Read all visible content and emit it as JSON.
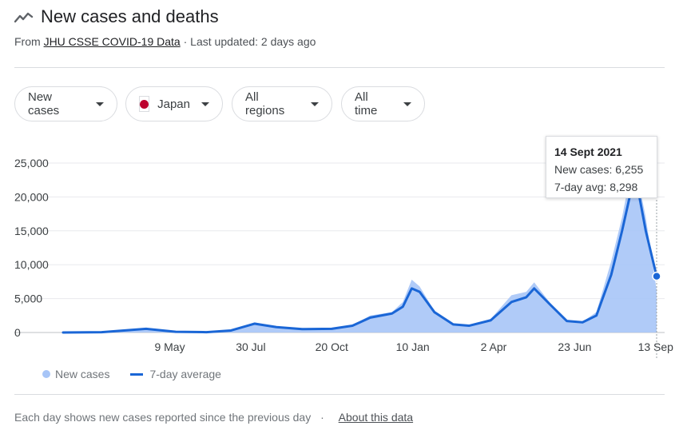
{
  "header": {
    "title": "New cases and deaths",
    "source_prefix": "From",
    "source_link": "JHU CSSE COVID-19 Data",
    "updated": "· Last updated: 2 days ago"
  },
  "filters": {
    "metric": "New cases",
    "country": "Japan",
    "region": "All regions",
    "time": "All time"
  },
  "tooltip": {
    "date": "14 Sept 2021",
    "new_cases": "New cases: 6,255",
    "avg": "7-day avg: 8,298"
  },
  "legend": {
    "bars": "New cases",
    "line": "7-day average"
  },
  "footer": {
    "note": "Each day shows new cases reported since the previous day",
    "sep": "·",
    "link": "About this data"
  },
  "colors": {
    "line": "#1a66d6",
    "bars": "#a7c5f7",
    "grid": "#e8eaed"
  },
  "chart_data": {
    "type": "area",
    "y_ticks": [
      0,
      5000,
      10000,
      15000,
      20000,
      25000
    ],
    "y_tick_labels": [
      "0",
      "5,000",
      "10,000",
      "15,000",
      "20,000",
      "25,000"
    ],
    "ylim": [
      0,
      25000
    ],
    "x_range": [
      "2020-01-22",
      "2021-09-14"
    ],
    "x_ticks": [
      {
        "date": "2020-05-09",
        "label": "9 May"
      },
      {
        "date": "2020-07-30",
        "label": "30 Jul"
      },
      {
        "date": "2020-10-20",
        "label": "20 Oct"
      },
      {
        "date": "2021-01-10",
        "label": "10 Jan"
      },
      {
        "date": "2021-04-02",
        "label": "2 Apr"
      },
      {
        "date": "2021-06-23",
        "label": "23 Jun"
      },
      {
        "date": "2021-09-13",
        "label": "13 Sep"
      }
    ],
    "series": [
      {
        "name": "7-day average",
        "points": [
          [
            "2020-01-22",
            0
          ],
          [
            "2020-03-01",
            50
          ],
          [
            "2020-04-15",
            550
          ],
          [
            "2020-05-15",
            100
          ],
          [
            "2020-06-15",
            50
          ],
          [
            "2020-07-10",
            300
          ],
          [
            "2020-08-03",
            1300
          ],
          [
            "2020-08-25",
            800
          ],
          [
            "2020-09-20",
            500
          ],
          [
            "2020-10-20",
            550
          ],
          [
            "2020-11-10",
            1000
          ],
          [
            "2020-11-28",
            2200
          ],
          [
            "2020-12-20",
            2800
          ],
          [
            "2020-12-31",
            3800
          ],
          [
            "2021-01-09",
            6500
          ],
          [
            "2021-01-17",
            6000
          ],
          [
            "2021-02-01",
            3000
          ],
          [
            "2021-02-20",
            1200
          ],
          [
            "2021-03-08",
            1000
          ],
          [
            "2021-03-30",
            1800
          ],
          [
            "2021-04-20",
            4500
          ],
          [
            "2021-05-05",
            5200
          ],
          [
            "2021-05-13",
            6500
          ],
          [
            "2021-05-30",
            4000
          ],
          [
            "2021-06-15",
            1700
          ],
          [
            "2021-07-01",
            1500
          ],
          [
            "2021-07-15",
            2500
          ],
          [
            "2021-07-30",
            8500
          ],
          [
            "2021-08-10",
            15000
          ],
          [
            "2021-08-20",
            21500
          ],
          [
            "2021-08-25",
            22000
          ],
          [
            "2021-09-03",
            15000
          ],
          [
            "2021-09-14",
            8298
          ]
        ]
      },
      {
        "name": "New cases",
        "points": [
          [
            "2020-01-22",
            0
          ],
          [
            "2020-03-01",
            60
          ],
          [
            "2020-04-15",
            600
          ],
          [
            "2020-05-15",
            110
          ],
          [
            "2020-06-15",
            60
          ],
          [
            "2020-07-10",
            350
          ],
          [
            "2020-08-03",
            1500
          ],
          [
            "2020-08-25",
            850
          ],
          [
            "2020-09-20",
            550
          ],
          [
            "2020-10-20",
            600
          ],
          [
            "2020-11-10",
            1100
          ],
          [
            "2020-11-28",
            2500
          ],
          [
            "2020-12-20",
            3000
          ],
          [
            "2020-12-31",
            4500
          ],
          [
            "2021-01-09",
            7800
          ],
          [
            "2021-01-17",
            6800
          ],
          [
            "2021-02-01",
            3200
          ],
          [
            "2021-02-20",
            1300
          ],
          [
            "2021-03-08",
            1050
          ],
          [
            "2021-03-30",
            2000
          ],
          [
            "2021-04-20",
            5500
          ],
          [
            "2021-05-05",
            6000
          ],
          [
            "2021-05-13",
            7400
          ],
          [
            "2021-05-30",
            4200
          ],
          [
            "2021-06-15",
            1800
          ],
          [
            "2021-07-01",
            1600
          ],
          [
            "2021-07-15",
            3000
          ],
          [
            "2021-07-30",
            10500
          ],
          [
            "2021-08-10",
            17000
          ],
          [
            "2021-08-20",
            24500
          ],
          [
            "2021-08-25",
            23500
          ],
          [
            "2021-09-03",
            17000
          ],
          [
            "2021-09-14",
            6255
          ]
        ]
      }
    ],
    "grid": true,
    "legend_position": "bottom-left"
  }
}
